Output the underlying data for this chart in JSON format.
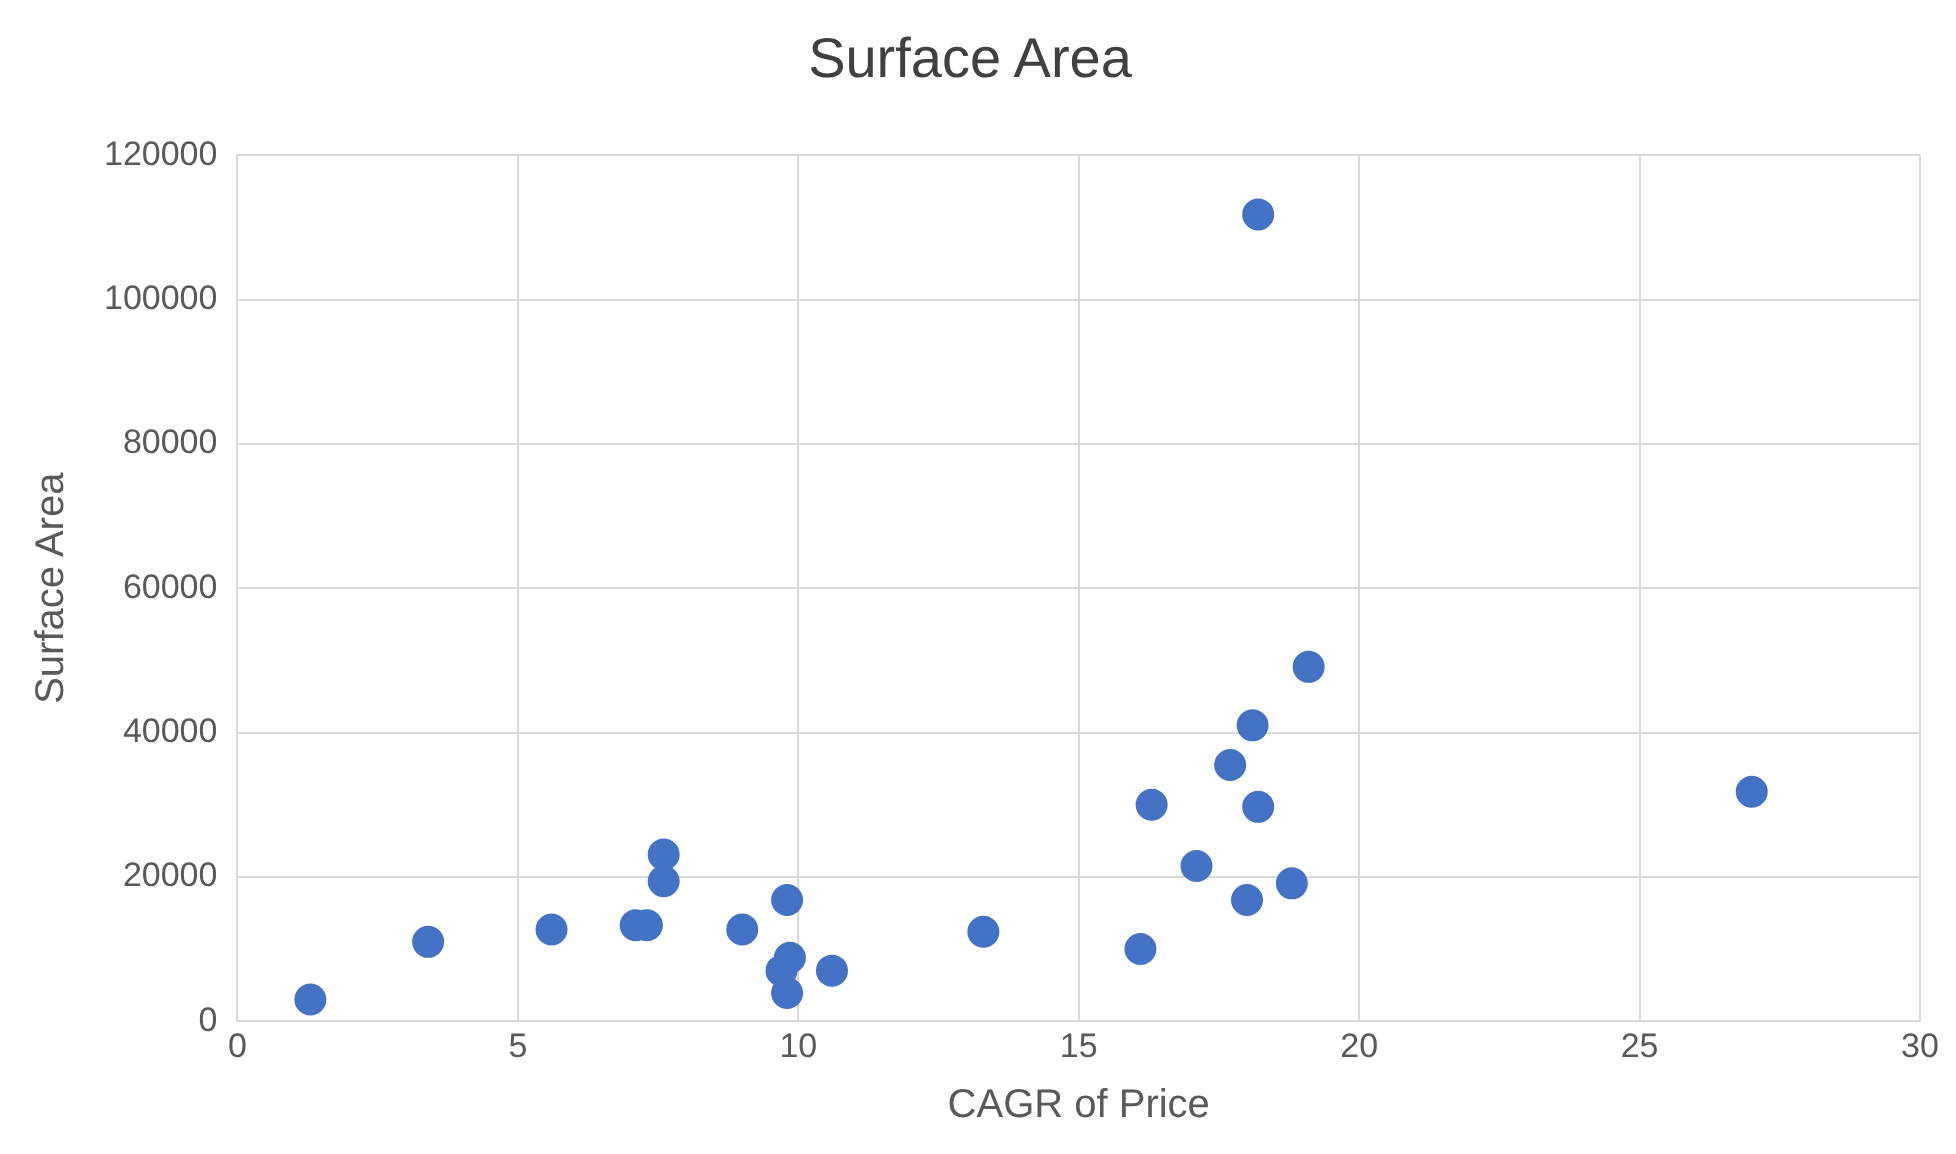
{
  "chart_data": {
    "type": "scatter",
    "title": "Surface Area",
    "xlabel": "CAGR of Price",
    "ylabel": "Surface Area",
    "x": [
      1.3,
      3.4,
      5.6,
      7.1,
      7.3,
      7.6,
      7.6,
      9.0,
      9.8,
      9.85,
      9.7,
      9.8,
      10.6,
      13.3,
      16.1,
      16.3,
      17.1,
      17.7,
      18.1,
      18.2,
      18.0,
      18.8,
      19.1,
      18.2,
      27.0
    ],
    "series": [
      {
        "color": "#4472c4",
        "values": [
          3000,
          11000,
          12700,
          13300,
          13300,
          23100,
          19400,
          12700,
          16800,
          8800,
          7000,
          3900,
          7000,
          12400,
          10000,
          30000,
          21500,
          35500,
          41000,
          29700,
          16800,
          19100,
          49100,
          111800,
          31800
        ]
      }
    ],
    "xlim": [
      0,
      30
    ],
    "xticks": [
      0,
      5,
      10,
      15,
      20,
      25,
      30
    ],
    "ylim": [
      0,
      120000
    ],
    "yticks": [
      0,
      20000,
      40000,
      60000,
      80000,
      100000,
      120000
    ],
    "grid": true,
    "legend": false,
    "marker": "circle"
  }
}
